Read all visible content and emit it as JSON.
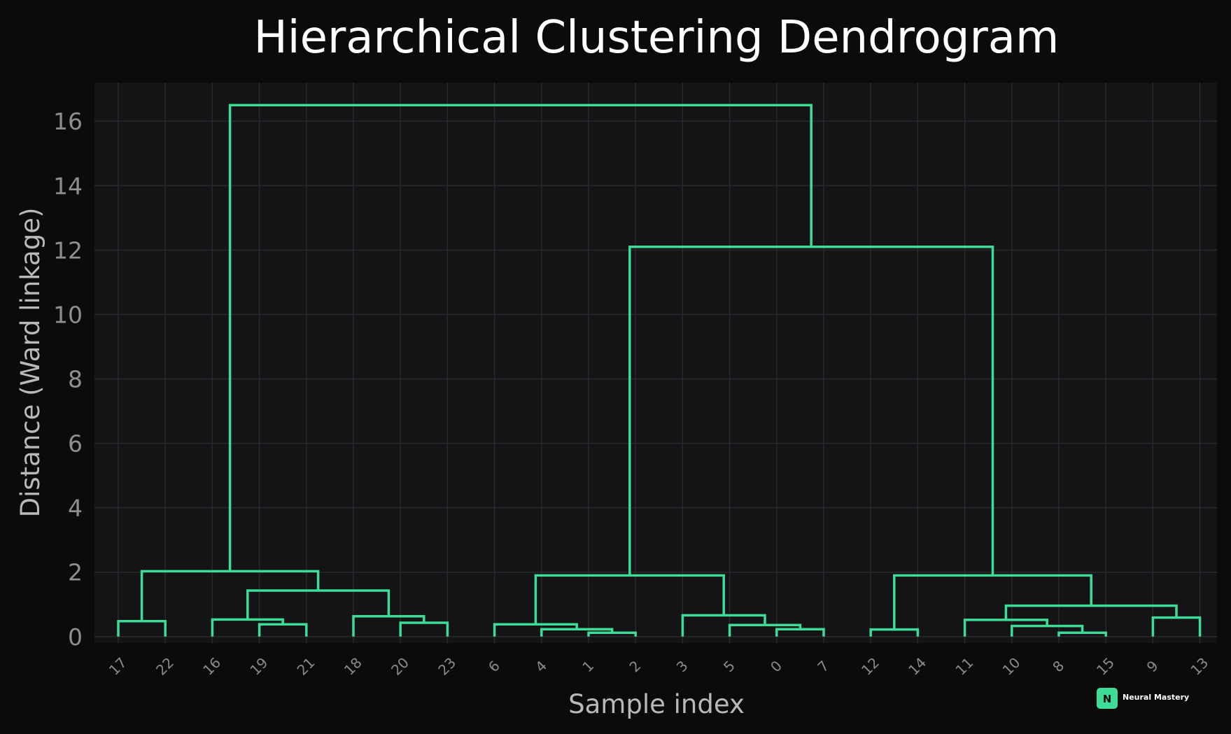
{
  "chart_data": {
    "type": "dendrogram",
    "title": "Hierarchical Clustering Dendrogram",
    "xlabel": "Sample index",
    "ylabel": "Distance (Ward linkage)",
    "ylim": [
      -0.2,
      17.2
    ],
    "yticks": [
      0,
      2,
      4,
      6,
      8,
      10,
      12,
      14,
      16
    ],
    "grid": true,
    "leaf_order": [
      "17",
      "22",
      "16",
      "19",
      "21",
      "18",
      "20",
      "23",
      "6",
      "4",
      "1",
      "2",
      "3",
      "5",
      "0",
      "7",
      "12",
      "14",
      "11",
      "10",
      "8",
      "15",
      "9",
      "13"
    ],
    "merges": [
      {
        "left": "17",
        "right": "22",
        "height": 0.48
      },
      {
        "left": "19",
        "right": "21",
        "height": 0.38
      },
      {
        "left": "16",
        "right": "{19,21}",
        "height": 0.53
      },
      {
        "left": "20",
        "right": "23",
        "height": 0.43
      },
      {
        "left": "18",
        "right": "{20,23}",
        "height": 0.63
      },
      {
        "left": "{16,19,21}",
        "right": "{18,20,23}",
        "height": 1.43
      },
      {
        "left": "{17,22}",
        "right": "{16,19,21,18,20,23}",
        "height": 2.03
      },
      {
        "left": "1",
        "right": "2",
        "height": 0.12
      },
      {
        "left": "4",
        "right": "{1,2}",
        "height": 0.23
      },
      {
        "left": "6",
        "right": "{4,1,2}",
        "height": 0.38
      },
      {
        "left": "0",
        "right": "7",
        "height": 0.23
      },
      {
        "left": "5",
        "right": "{0,7}",
        "height": 0.36
      },
      {
        "left": "3",
        "right": "{5,0,7}",
        "height": 0.66
      },
      {
        "left": "{6,4,1,2}",
        "right": "{3,5,0,7}",
        "height": 1.9
      },
      {
        "left": "12",
        "right": "14",
        "height": 0.22
      },
      {
        "left": "8",
        "right": "15",
        "height": 0.12
      },
      {
        "left": "10",
        "right": "{8,15}",
        "height": 0.33
      },
      {
        "left": "11",
        "right": "{10,8,15}",
        "height": 0.52
      },
      {
        "left": "9",
        "right": "13",
        "height": 0.59
      },
      {
        "left": "{11,10,8,15}",
        "right": "{9,13}",
        "height": 0.96
      },
      {
        "left": "{12,14}",
        "right": "{11,10,8,15,9,13}",
        "height": 1.9
      },
      {
        "left": "{6,4,1,2,3,5,0,7}",
        "right": "{12,14,11,10,8,15,9,13}",
        "height": 12.1
      },
      {
        "left": "{17,22,16,19,21,18,20,23}",
        "right": "{6,4,1,2,3,5,0,7,12,14,11,10,8,15,9,13}",
        "height": 16.5
      }
    ],
    "colors": {
      "link": "#3ddc97",
      "background": "#0b0b0b",
      "plot_background": "#141416",
      "grid": "#2a2a2e"
    }
  },
  "brand": {
    "name": "Neural Mastery",
    "letter": "N",
    "icon": "brand-logo-icon",
    "color": "#3ddc97"
  }
}
